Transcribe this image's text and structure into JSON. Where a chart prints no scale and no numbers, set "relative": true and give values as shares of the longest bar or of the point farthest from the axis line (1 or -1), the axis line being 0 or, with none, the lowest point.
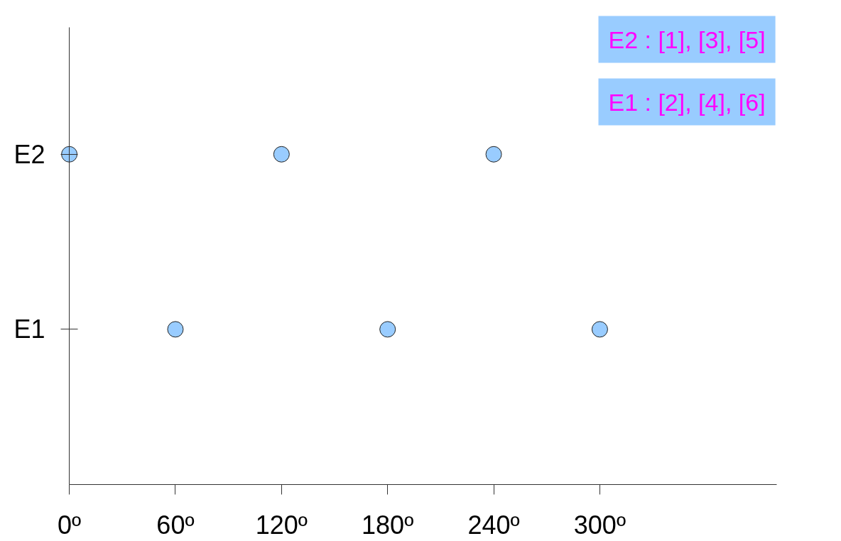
{
  "chart_data": {
    "type": "scatter",
    "x": [
      0,
      60,
      120,
      180,
      240,
      300
    ],
    "relative": true,
    "series": [
      {
        "color": "#99ccff",
        "values": [
          1,
          0.47,
          1,
          0.47,
          1,
          0.47
        ]
      }
    ],
    "xlim": [
      0,
      400
    ],
    "xticks": [
      {
        "value": 0,
        "label": "0º"
      },
      {
        "value": 60,
        "label": "60º"
      },
      {
        "value": 120,
        "label": "120º"
      },
      {
        "value": 180,
        "label": "180º"
      },
      {
        "value": 240,
        "label": "240º"
      },
      {
        "value": 300,
        "label": "300º"
      }
    ],
    "marker": "circle",
    "grid": false,
    "annotations": [
      "E2",
      "E1",
      "E2 : [1], [3], [5]",
      "E1 : [2], [4], [6]"
    ]
  }
}
